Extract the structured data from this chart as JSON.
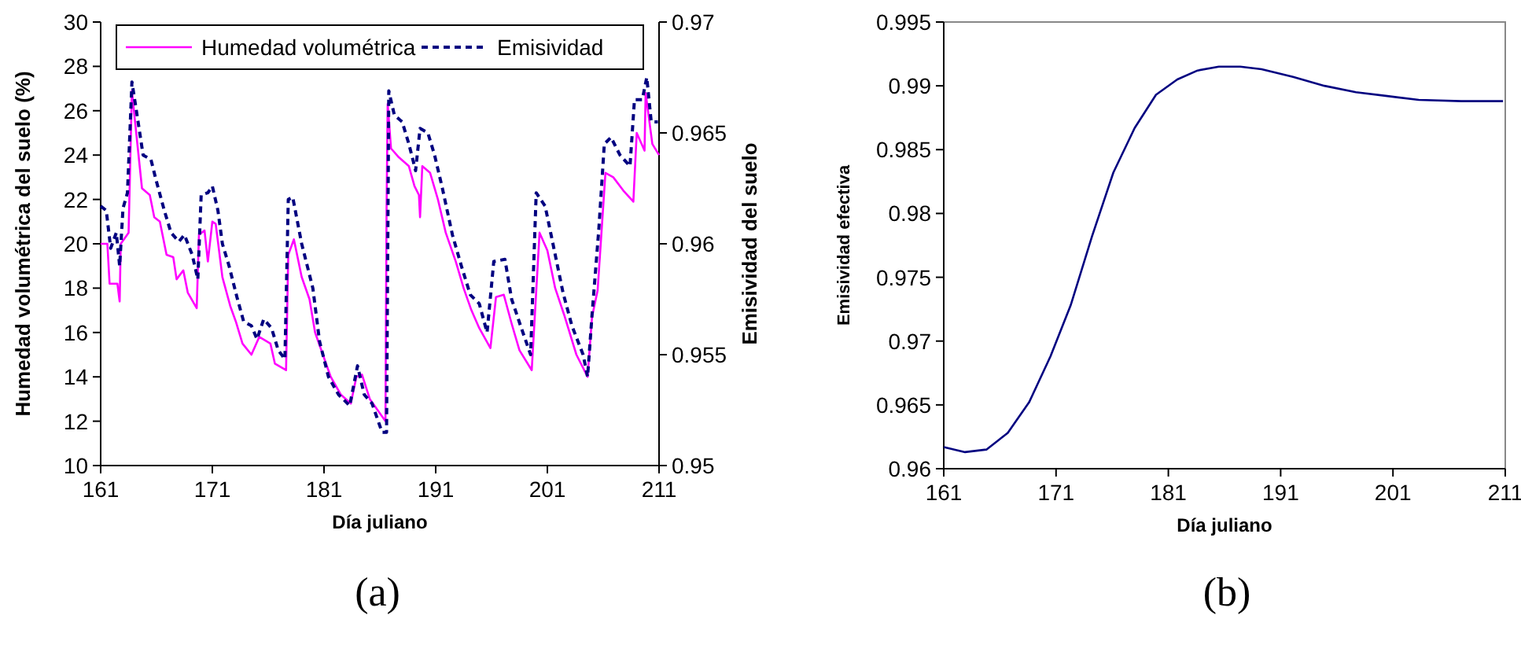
{
  "chart_data": [
    {
      "type": "line",
      "xlabel": "Día juliano",
      "ylabel": "Humedad volumétrica del suelo (%)",
      "y2label": "Emisividad del suelo",
      "xlim": [
        161,
        211
      ],
      "xticks": [
        161,
        171,
        181,
        191,
        201,
        211
      ],
      "ylim": [
        10,
        30
      ],
      "yticks": [
        10,
        12,
        14,
        16,
        18,
        20,
        22,
        24,
        26,
        28,
        30
      ],
      "y2lim": [
        0.95,
        0.97
      ],
      "y2ticks": [
        0.95,
        0.955,
        0.96,
        0.965,
        0.97
      ],
      "legend": "top",
      "grid": false,
      "annotations": [
        "(a)"
      ],
      "series": [
        {
          "name": "Humedad volumétrica",
          "color": "#ff00ff",
          "line_style": "solid",
          "x": [
            161,
            161.6,
            161.8,
            162.5,
            162.7,
            162.8,
            163.5,
            163.8,
            164.1,
            164.7,
            165.4,
            165.8,
            166.3,
            166.9,
            167.5,
            167.8,
            168.4,
            168.8,
            169.6,
            169.8,
            170.3,
            170.6,
            171,
            171.3,
            171.9,
            172.6,
            173.1,
            173.7,
            174.5,
            175.2,
            176.2,
            176.6,
            177.6,
            177.8,
            178.3,
            179,
            179.7,
            180.2,
            180.9,
            181.6,
            182.5,
            183.4,
            183.9,
            184.4,
            185.1,
            185.8,
            186.5,
            186.6,
            186.7,
            187,
            187.7,
            188.6,
            189.1,
            189.5,
            189.6,
            189.8,
            190.5,
            191.2,
            191.9,
            192.8,
            193.5,
            194.2,
            194.9,
            195.9,
            196.4,
            197.1,
            197.8,
            198.5,
            199.6,
            200.3,
            201,
            201.7,
            202.5,
            203.6,
            204.6,
            205,
            205.5,
            206.2,
            206.9,
            207.8,
            208.7,
            209,
            209.7,
            209.8,
            210.4,
            211
          ],
          "values": [
            20,
            20,
            18.2,
            18.2,
            17.4,
            20,
            20.5,
            26.9,
            25.4,
            22.5,
            22.2,
            21.2,
            21,
            19.5,
            19.4,
            18.4,
            18.8,
            17.8,
            17.1,
            20.4,
            20.6,
            19.2,
            21,
            20.9,
            18.5,
            17.2,
            16.5,
            15.5,
            15,
            15.8,
            15.5,
            14.6,
            14.3,
            19.5,
            20.2,
            18.5,
            17.5,
            16,
            15,
            14,
            13.2,
            12.8,
            14,
            14.1,
            13,
            12.5,
            12,
            21.5,
            26.3,
            24.3,
            23.9,
            23.5,
            22.6,
            22.2,
            21.2,
            23.5,
            23.2,
            22,
            20.5,
            19.2,
            18,
            17,
            16.2,
            15.3,
            17.6,
            17.7,
            16.4,
            15.2,
            14.3,
            20.5,
            19.7,
            18,
            16.8,
            15,
            14,
            16.7,
            17.9,
            23.2,
            23,
            22.4,
            21.9,
            25,
            24.2,
            26.8,
            24.5,
            24
          ]
        },
        {
          "name": "Emisividad",
          "color": "#000080",
          "line_style": "dashed",
          "axis": "y2",
          "x": [
            161,
            161.5,
            161.9,
            162.4,
            162.7,
            163,
            163.4,
            163.8,
            164.2,
            164.8,
            165.5,
            166,
            166.7,
            167.3,
            168,
            168.5,
            169.2,
            169.7,
            170,
            170.6,
            171,
            171.5,
            171.9,
            172.5,
            173.2,
            173.8,
            174.5,
            175,
            175.6,
            176.3,
            176.9,
            177.5,
            177.8,
            178.2,
            179,
            180,
            180.6,
            181.4,
            182.3,
            183.3,
            184,
            184.6,
            185.3,
            186.2,
            186.6,
            186.8,
            187.3,
            188,
            188.6,
            189.2,
            189.6,
            190.3,
            190.9,
            191.6,
            192.5,
            193.3,
            194.1,
            194.9,
            195.6,
            196.2,
            197.2,
            197.8,
            198.6,
            199.5,
            200,
            200.8,
            201.5,
            202.4,
            203.2,
            204.2,
            204.6,
            205,
            205.6,
            206.1,
            206.7,
            207.5,
            208.4,
            208.8,
            209.5,
            209.9,
            210.3,
            210.9
          ],
          "values": [
            0.9617,
            0.9615,
            0.9598,
            0.9605,
            0.959,
            0.9616,
            0.9623,
            0.9673,
            0.966,
            0.964,
            0.9638,
            0.9628,
            0.9615,
            0.9605,
            0.9601,
            0.9604,
            0.9595,
            0.9584,
            0.9622,
            0.9623,
            0.9626,
            0.9615,
            0.96,
            0.959,
            0.9576,
            0.9565,
            0.9563,
            0.9557,
            0.9566,
            0.9562,
            0.9552,
            0.9548,
            0.962,
            0.9621,
            0.96,
            0.958,
            0.9556,
            0.954,
            0.9532,
            0.9527,
            0.9545,
            0.9532,
            0.9528,
            0.9515,
            0.9515,
            0.9669,
            0.9658,
            0.9655,
            0.9645,
            0.9633,
            0.9652,
            0.965,
            0.964,
            0.9625,
            0.9604,
            0.959,
            0.9577,
            0.9573,
            0.956,
            0.9592,
            0.9593,
            0.9575,
            0.9563,
            0.955,
            0.9623,
            0.9617,
            0.96,
            0.9578,
            0.9563,
            0.955,
            0.954,
            0.9568,
            0.9606,
            0.9645,
            0.9648,
            0.964,
            0.9635,
            0.9665,
            0.9665,
            0.9675,
            0.9655,
            0.9655
          ]
        }
      ]
    },
    {
      "type": "line",
      "xlabel": "Día juliano",
      "ylabel": "Emisividad efectiva",
      "xlim": [
        161,
        211
      ],
      "xticks": [
        161,
        171,
        181,
        191,
        201,
        211
      ],
      "ylim": [
        0.96,
        0.995
      ],
      "yticks": [
        0.96,
        0.965,
        0.97,
        0.975,
        0.98,
        0.985,
        0.99,
        0.995
      ],
      "grid": false,
      "legend": false,
      "annotations": [
        "(b)"
      ],
      "series": [
        {
          "color": "#000080",
          "line_style": "solid",
          "x": [
            161,
            162.9,
            164.8,
            166.7,
            168.6,
            170.5,
            172.3,
            174.2,
            176.1,
            178,
            179.9,
            181.8,
            183.6,
            185.5,
            187.4,
            189.3,
            192.1,
            194.9,
            197.7,
            200.5,
            203.3,
            207.1,
            210.8
          ],
          "values": [
            0.9617,
            0.9613,
            0.9615,
            0.9628,
            0.9652,
            0.9688,
            0.9728,
            0.9782,
            0.9832,
            0.9867,
            0.9893,
            0.9905,
            0.9912,
            0.9915,
            0.9915,
            0.9913,
            0.9907,
            0.99,
            0.9895,
            0.9892,
            0.9889,
            0.9888,
            0.9888
          ]
        }
      ]
    }
  ]
}
